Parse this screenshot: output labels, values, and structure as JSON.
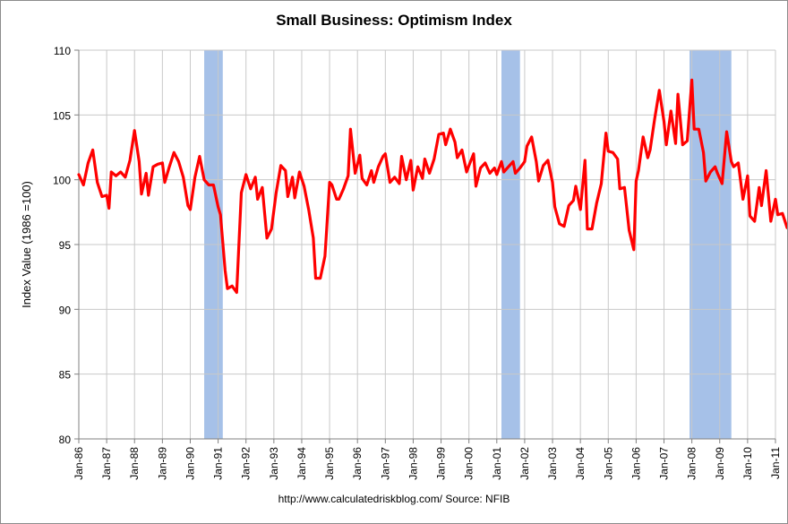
{
  "chart_data": {
    "type": "line",
    "title": "Small Business: Optimism Index",
    "ylabel": "Index Value (1986 =100)",
    "xlabel": "",
    "ylim": [
      80,
      110
    ],
    "yticks": [
      80,
      85,
      90,
      95,
      100,
      105,
      110
    ],
    "xlim": [
      "1986-01",
      "2011-01"
    ],
    "xtick_labels": [
      "Jan-86",
      "Jan-87",
      "Jan-88",
      "Jan-89",
      "Jan-90",
      "Jan-91",
      "Jan-92",
      "Jan-93",
      "Jan-94",
      "Jan-95",
      "Jan-96",
      "Jan-97",
      "Jan-98",
      "Jan-99",
      "Jan-00",
      "Jan-01",
      "Jan-02",
      "Jan-03",
      "Jan-04",
      "Jan-05",
      "Jan-06",
      "Jan-07",
      "Jan-08",
      "Jan-09",
      "Jan-10",
      "Jan-11"
    ],
    "grid": {
      "vertical": true,
      "horizontal": true
    },
    "recessions": [
      {
        "start": "1990-07",
        "end": "1991-03"
      },
      {
        "start": "2001-03",
        "end": "2001-11"
      },
      {
        "start": "2007-12",
        "end": "2009-06"
      }
    ],
    "series": [
      {
        "name": "",
        "color": "#ff0000",
        "points": [
          [
            "1986-01",
            100.4
          ],
          [
            "1986-03",
            99.6
          ],
          [
            "1986-05",
            101.3
          ],
          [
            "1986-07",
            102.3
          ],
          [
            "1986-09",
            99.8
          ],
          [
            "1986-11",
            98.7
          ],
          [
            "1987-01",
            98.8
          ],
          [
            "1987-02",
            97.8
          ],
          [
            "1987-03",
            100.6
          ],
          [
            "1987-05",
            100.3
          ],
          [
            "1987-07",
            100.6
          ],
          [
            "1987-09",
            100.2
          ],
          [
            "1987-11",
            101.5
          ],
          [
            "1988-01",
            103.8
          ],
          [
            "1988-03",
            101.4
          ],
          [
            "1988-04",
            98.9
          ],
          [
            "1988-06",
            100.5
          ],
          [
            "1988-07",
            98.8
          ],
          [
            "1988-09",
            101.0
          ],
          [
            "1988-11",
            101.2
          ],
          [
            "1989-01",
            101.3
          ],
          [
            "1989-02",
            99.8
          ],
          [
            "1989-04",
            101.0
          ],
          [
            "1989-06",
            102.1
          ],
          [
            "1989-08",
            101.4
          ],
          [
            "1989-10",
            100.2
          ],
          [
            "1989-12",
            98.0
          ],
          [
            "1990-01",
            97.7
          ],
          [
            "1990-03",
            100.2
          ],
          [
            "1990-05",
            101.8
          ],
          [
            "1990-07",
            100.0
          ],
          [
            "1990-09",
            99.6
          ],
          [
            "1990-11",
            99.6
          ],
          [
            "1991-01",
            97.9
          ],
          [
            "1991-02",
            97.3
          ],
          [
            "1991-04",
            93.0
          ],
          [
            "1991-05",
            91.6
          ],
          [
            "1991-07",
            91.8
          ],
          [
            "1991-09",
            91.3
          ],
          [
            "1991-11",
            99.0
          ],
          [
            "1992-01",
            100.4
          ],
          [
            "1992-03",
            99.3
          ],
          [
            "1992-05",
            100.2
          ],
          [
            "1992-06",
            98.5
          ],
          [
            "1992-08",
            99.4
          ],
          [
            "1992-10",
            95.5
          ],
          [
            "1992-12",
            96.2
          ],
          [
            "1993-02",
            99.0
          ],
          [
            "1993-04",
            101.1
          ],
          [
            "1993-06",
            100.7
          ],
          [
            "1993-07",
            98.7
          ],
          [
            "1993-09",
            100.2
          ],
          [
            "1993-10",
            98.6
          ],
          [
            "1993-12",
            100.6
          ],
          [
            "1994-02",
            99.5
          ],
          [
            "1994-04",
            97.7
          ],
          [
            "1994-06",
            95.5
          ],
          [
            "1994-07",
            92.4
          ],
          [
            "1994-09",
            92.4
          ],
          [
            "1994-11",
            94.1
          ],
          [
            "1995-01",
            99.8
          ],
          [
            "1995-02",
            99.6
          ],
          [
            "1995-04",
            98.5
          ],
          [
            "1995-05",
            98.5
          ],
          [
            "1995-07",
            99.3
          ],
          [
            "1995-09",
            100.3
          ],
          [
            "1995-10",
            103.9
          ],
          [
            "1995-12",
            100.5
          ],
          [
            "1996-02",
            101.9
          ],
          [
            "1996-03",
            100.1
          ],
          [
            "1996-05",
            99.6
          ],
          [
            "1996-07",
            100.7
          ],
          [
            "1996-08",
            99.8
          ],
          [
            "1996-10",
            101.0
          ],
          [
            "1996-12",
            101.8
          ],
          [
            "1997-01",
            102.0
          ],
          [
            "1997-03",
            99.8
          ],
          [
            "1997-05",
            100.2
          ],
          [
            "1997-07",
            99.7
          ],
          [
            "1997-08",
            101.8
          ],
          [
            "1997-10",
            100.0
          ],
          [
            "1997-12",
            101.5
          ],
          [
            "1998-01",
            99.2
          ],
          [
            "1998-03",
            101.0
          ],
          [
            "1998-05",
            100.1
          ],
          [
            "1998-06",
            101.6
          ],
          [
            "1998-08",
            100.5
          ],
          [
            "1998-10",
            101.6
          ],
          [
            "1998-12",
            103.5
          ],
          [
            "1999-02",
            103.6
          ],
          [
            "1999-03",
            102.7
          ],
          [
            "1999-05",
            103.9
          ],
          [
            "1999-07",
            102.9
          ],
          [
            "1999-08",
            101.7
          ],
          [
            "1999-10",
            102.3
          ],
          [
            "1999-12",
            100.6
          ],
          [
            "2000-01",
            101.1
          ],
          [
            "2000-03",
            102.0
          ],
          [
            "2000-04",
            99.5
          ],
          [
            "2000-06",
            100.9
          ],
          [
            "2000-08",
            101.3
          ],
          [
            "2000-10",
            100.5
          ],
          [
            "2000-12",
            100.9
          ],
          [
            "2001-01",
            100.4
          ],
          [
            "2001-03",
            101.4
          ],
          [
            "2001-04",
            100.6
          ],
          [
            "2001-06",
            101.0
          ],
          [
            "2001-08",
            101.4
          ],
          [
            "2001-09",
            100.5
          ],
          [
            "2001-11",
            100.9
          ],
          [
            "2002-01",
            101.4
          ],
          [
            "2002-02",
            102.6
          ],
          [
            "2002-04",
            103.3
          ],
          [
            "2002-06",
            101.4
          ],
          [
            "2002-07",
            99.9
          ],
          [
            "2002-09",
            101.1
          ],
          [
            "2002-11",
            101.5
          ],
          [
            "2003-01",
            99.8
          ],
          [
            "2003-02",
            97.9
          ],
          [
            "2003-04",
            96.6
          ],
          [
            "2003-06",
            96.4
          ],
          [
            "2003-08",
            98.0
          ],
          [
            "2003-10",
            98.4
          ],
          [
            "2003-11",
            99.5
          ],
          [
            "2004-01",
            97.7
          ],
          [
            "2004-03",
            101.5
          ],
          [
            "2004-04",
            96.2
          ],
          [
            "2004-06",
            96.2
          ],
          [
            "2004-08",
            98.2
          ],
          [
            "2004-10",
            99.7
          ],
          [
            "2004-12",
            103.6
          ],
          [
            "2005-01",
            102.2
          ],
          [
            "2005-03",
            102.1
          ],
          [
            "2005-05",
            101.6
          ],
          [
            "2005-06",
            99.3
          ],
          [
            "2005-08",
            99.4
          ],
          [
            "2005-10",
            96.1
          ],
          [
            "2005-12",
            94.6
          ],
          [
            "2006-01",
            99.9
          ],
          [
            "2006-02",
            100.7
          ],
          [
            "2006-04",
            103.3
          ],
          [
            "2006-06",
            101.7
          ],
          [
            "2006-07",
            102.3
          ],
          [
            "2006-09",
            104.7
          ],
          [
            "2006-11",
            106.9
          ],
          [
            "2007-01",
            104.5
          ],
          [
            "2007-02",
            102.7
          ],
          [
            "2007-04",
            105.3
          ],
          [
            "2007-06",
            102.8
          ],
          [
            "2007-07",
            106.6
          ],
          [
            "2007-09",
            102.7
          ],
          [
            "2007-11",
            103.0
          ],
          [
            "2008-01",
            107.7
          ],
          [
            "2008-02",
            103.9
          ],
          [
            "2008-04",
            103.9
          ],
          [
            "2008-06",
            102.1
          ],
          [
            "2008-07",
            99.9
          ],
          [
            "2008-09",
            100.6
          ],
          [
            "2008-11",
            101.0
          ],
          [
            "2008-12",
            100.5
          ],
          [
            "2009-02",
            99.7
          ],
          [
            "2009-04",
            103.7
          ],
          [
            "2009-06",
            101.4
          ],
          [
            "2009-07",
            101.0
          ],
          [
            "2009-09",
            101.3
          ],
          [
            "2009-11",
            98.5
          ],
          [
            "2010-01",
            100.3
          ],
          [
            "2010-02",
            97.2
          ],
          [
            "2010-04",
            96.8
          ],
          [
            "2010-06",
            99.4
          ],
          [
            "2010-07",
            98.0
          ],
          [
            "2010-09",
            100.7
          ],
          [
            "2010-11",
            96.8
          ],
          [
            "2011-01",
            98.5
          ],
          [
            "2011-02",
            97.3
          ],
          [
            "2011-04",
            97.4
          ],
          [
            "2011-06",
            96.3
          ]
        ]
      }
    ]
  },
  "footer": {
    "source": "http://www.calculatedriskblog.com/  Source: NFIB"
  }
}
